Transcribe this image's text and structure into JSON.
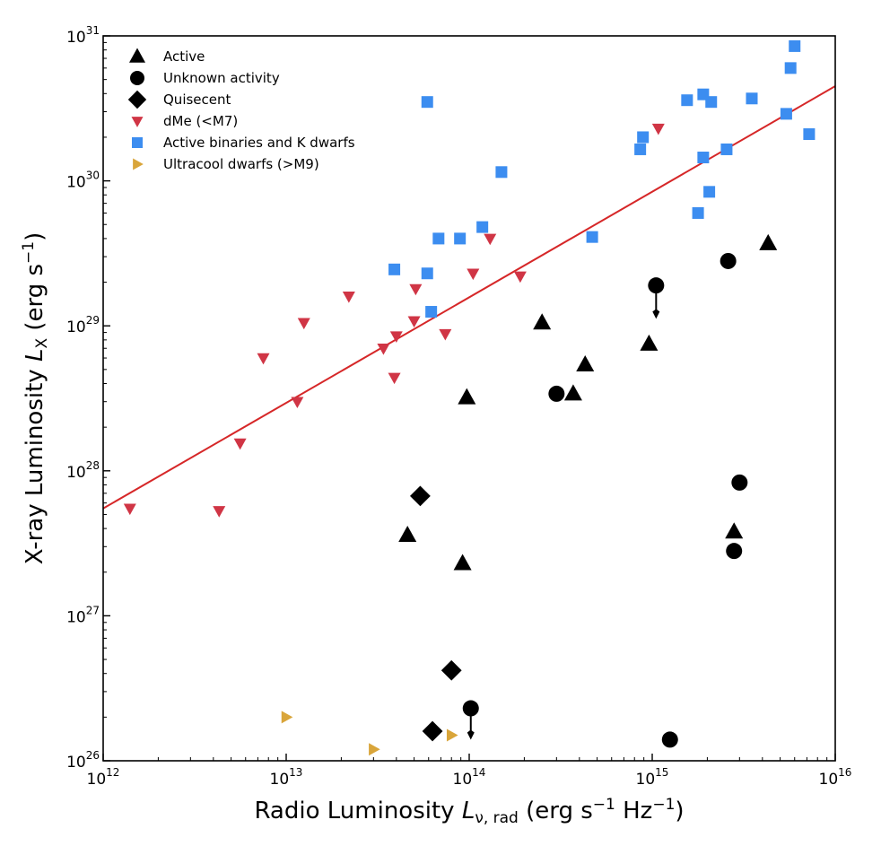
{
  "chart_data": {
    "type": "scatter",
    "xlabel": "Radio Luminosity  L_{ν, rad} (erg s^{−1} Hz^{−1})",
    "ylabel": "X-ray Luminosity L_X (erg s^{−1})",
    "x_scale": "log",
    "y_scale": "log",
    "xlim": [
      1000000000000.0,
      1e+16
    ],
    "ylim": [
      1e+26,
      1e+31
    ],
    "x_ticks": [
      {
        "value": 1000000000000.0,
        "base": "10",
        "exp": "12"
      },
      {
        "value": 10000000000000.0,
        "base": "10",
        "exp": "13"
      },
      {
        "value": 100000000000000.0,
        "base": "10",
        "exp": "14"
      },
      {
        "value": 1000000000000000.0,
        "base": "10",
        "exp": "15"
      },
      {
        "value": 1e+16,
        "base": "10",
        "exp": "16"
      }
    ],
    "y_ticks": [
      {
        "value": 1e+26,
        "base": "10",
        "exp": "26"
      },
      {
        "value": 1e+27,
        "base": "10",
        "exp": "27"
      },
      {
        "value": 1e+28,
        "base": "10",
        "exp": "28"
      },
      {
        "value": 1e+29,
        "base": "10",
        "exp": "29"
      },
      {
        "value": 1e+30,
        "base": "10",
        "exp": "30"
      },
      {
        "value": 1e+31,
        "base": "10",
        "exp": "31"
      }
    ],
    "grid": false,
    "legend_position": "top-left",
    "fit_line": {
      "color": "#d62728",
      "points": [
        [
          1000000000000.0,
          5.5e+27
        ],
        [
          1e+16,
          4.5e+30
        ]
      ]
    },
    "series": [
      {
        "name": "Active",
        "marker": "triangle-up",
        "color": "#000000",
        "points": [
          [
            46000000000000.0,
            3.6e+27
          ],
          [
            92000000000000.0,
            2.3e+27
          ],
          [
            97000000000000.0,
            3.2e+28
          ],
          [
            250000000000000.0,
            1.05e+29
          ],
          [
            370000000000000.0,
            3.4e+28
          ],
          [
            430000000000000.0,
            5.4e+28
          ],
          [
            960000000000000.0,
            7.5e+28
          ],
          [
            2800000000000000.0,
            3.8e+27
          ],
          [
            4300000000000000.0,
            3.7e+29
          ]
        ]
      },
      {
        "name": "Unknown activity",
        "marker": "circle",
        "color": "#000000",
        "points": [
          [
            102000000000000.0,
            2.3e+26
          ],
          [
            300000000000000.0,
            3.4e+28
          ],
          [
            1050000000000000.0,
            1.9e+29
          ],
          [
            1250000000000000.0,
            1.4e+26
          ],
          [
            2600000000000000.0,
            2.8e+29
          ],
          [
            2800000000000000.0,
            2.8e+27
          ],
          [
            3000000000000000.0,
            8.3e+27
          ]
        ],
        "upper_limits": [
          [
            102000000000000.0,
            2.3e+26,
            1.5e+26
          ],
          [
            1050000000000000.0,
            1.9e+29,
            1.2e+29
          ]
        ]
      },
      {
        "name": "Quisecent",
        "marker": "diamond",
        "color": "#000000",
        "points": [
          [
            54000000000000.0,
            6.7e+27
          ],
          [
            63000000000000.0,
            1.6e+26
          ],
          [
            80000000000000.0,
            4.2e+26
          ]
        ]
      },
      {
        "name": "dMe (<M7)",
        "marker": "triangle-down",
        "color": "#d03545",
        "points": [
          [
            1400000000000.0,
            5.5e+27
          ],
          [
            4300000000000.0,
            5.3e+27
          ],
          [
            5600000000000.0,
            1.55e+28
          ],
          [
            7500000000000.0,
            6e+28
          ],
          [
            11500000000000.0,
            3e+28
          ],
          [
            12500000000000.0,
            1.05e+29
          ],
          [
            22000000000000.0,
            1.6e+29
          ],
          [
            34000000000000.0,
            7e+28
          ],
          [
            39000000000000.0,
            4.4e+28
          ],
          [
            40000000000000.0,
            8.5e+28
          ],
          [
            50000000000000.0,
            1.08e+29
          ],
          [
            51000000000000.0,
            1.8e+29
          ],
          [
            74000000000000.0,
            8.8e+28
          ],
          [
            105000000000000.0,
            2.3e+29
          ],
          [
            130000000000000.0,
            4e+29
          ],
          [
            190000000000000.0,
            2.2e+29
          ],
          [
            1080000000000000.0,
            2.3e+30
          ]
        ]
      },
      {
        "name": "Active binaries and K dwarfs",
        "marker": "square",
        "color": "#3c8df0",
        "points": [
          [
            39000000000000.0,
            2.45e+29
          ],
          [
            59000000000000.0,
            3.5e+30
          ],
          [
            59000000000000.0,
            2.3e+29
          ],
          [
            62000000000000.0,
            1.25e+29
          ],
          [
            68000000000000.0,
            4e+29
          ],
          [
            89000000000000.0,
            4e+29
          ],
          [
            118000000000000.0,
            4.8e+29
          ],
          [
            150000000000000.0,
            1.15e+30
          ],
          [
            470000000000000.0,
            4.1e+29
          ],
          [
            860000000000000.0,
            1.65e+30
          ],
          [
            890000000000000.0,
            2e+30
          ],
          [
            1550000000000000.0,
            3.6e+30
          ],
          [
            1780000000000000.0,
            6e+29
          ],
          [
            1900000000000000.0,
            3.95e+30
          ],
          [
            1900000000000000.0,
            1.45e+30
          ],
          [
            2050000000000000.0,
            8.4e+29
          ],
          [
            2100000000000000.0,
            3.5e+30
          ],
          [
            2550000000000000.0,
            1.65e+30
          ],
          [
            3500000000000000.0,
            3.7e+30
          ],
          [
            5400000000000000.0,
            2.9e+30
          ],
          [
            5700000000000000.0,
            6e+30
          ],
          [
            6000000000000000.0,
            8.5e+30
          ],
          [
            7200000000000000.0,
            2.1e+30
          ]
        ]
      },
      {
        "name": "Ultracool dwarfs (>M9)",
        "marker": "triangle-right",
        "color": "#d9a53a",
        "points": [
          [
            10000000000000.0,
            2e+26
          ],
          [
            30000000000000.0,
            1.2e+26
          ],
          [
            80000000000000.0,
            1.5e+26
          ]
        ]
      }
    ]
  },
  "legend": {
    "items": [
      {
        "label": "Active",
        "marker": "triangle-up",
        "color": "#000000"
      },
      {
        "label": "Unknown activity",
        "marker": "circle",
        "color": "#000000"
      },
      {
        "label": "Quisecent",
        "marker": "diamond",
        "color": "#000000"
      },
      {
        "label": "dMe (<M7)",
        "marker": "triangle-down",
        "color": "#d03545"
      },
      {
        "label": "Active binaries and K dwarfs",
        "marker": "square",
        "color": "#3c8df0"
      },
      {
        "label": "Ultracool dwarfs (>M9)",
        "marker": "triangle-right",
        "color": "#d9a53a"
      }
    ]
  }
}
